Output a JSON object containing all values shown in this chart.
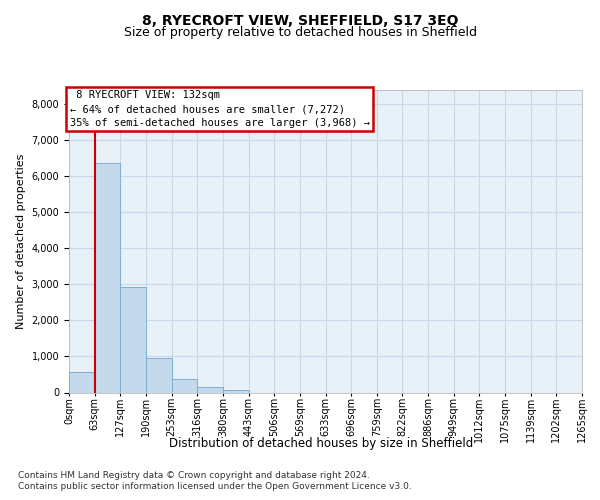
{
  "title1": "8, RYECROFT VIEW, SHEFFIELD, S17 3EQ",
  "title2": "Size of property relative to detached houses in Sheffield",
  "xlabel": "Distribution of detached houses by size in Sheffield",
  "ylabel": "Number of detached properties",
  "footnote1": "Contains HM Land Registry data © Crown copyright and database right 2024.",
  "footnote2": "Contains public sector information licensed under the Open Government Licence v3.0.",
  "annotation_title": "8 RYECROFT VIEW: 132sqm",
  "annotation_line1": "← 64% of detached houses are smaller (7,272)",
  "annotation_line2": "35% of semi-detached houses are larger (3,968) →",
  "bar_values": [
    580,
    6380,
    2920,
    970,
    370,
    155,
    65,
    0,
    0,
    0,
    0,
    0,
    0,
    0,
    0,
    0,
    0,
    0,
    0,
    0
  ],
  "bin_labels": [
    "0sqm",
    "63sqm",
    "127sqm",
    "190sqm",
    "253sqm",
    "316sqm",
    "380sqm",
    "443sqm",
    "506sqm",
    "569sqm",
    "633sqm",
    "696sqm",
    "759sqm",
    "822sqm",
    "886sqm",
    "949sqm",
    "1012sqm",
    "1075sqm",
    "1139sqm",
    "1202sqm",
    "1265sqm"
  ],
  "bar_color": "#c5d9ed",
  "bar_edge_color": "#7aafd4",
  "vline_x": 1,
  "vline_color": "#cc0000",
  "annotation_box_color": "white",
  "annotation_box_edge": "#cc0000",
  "ylim_max": 8400,
  "yticks": [
    0,
    1000,
    2000,
    3000,
    4000,
    5000,
    6000,
    7000,
    8000
  ],
  "grid_color": "#c8d8ea",
  "bg_color": "#e8f0f8",
  "title1_fontsize": 10,
  "title2_fontsize": 9,
  "ylabel_fontsize": 8,
  "xlabel_fontsize": 8.5,
  "tick_fontsize": 7,
  "annot_fontsize": 7.5,
  "footnote_fontsize": 6.5
}
